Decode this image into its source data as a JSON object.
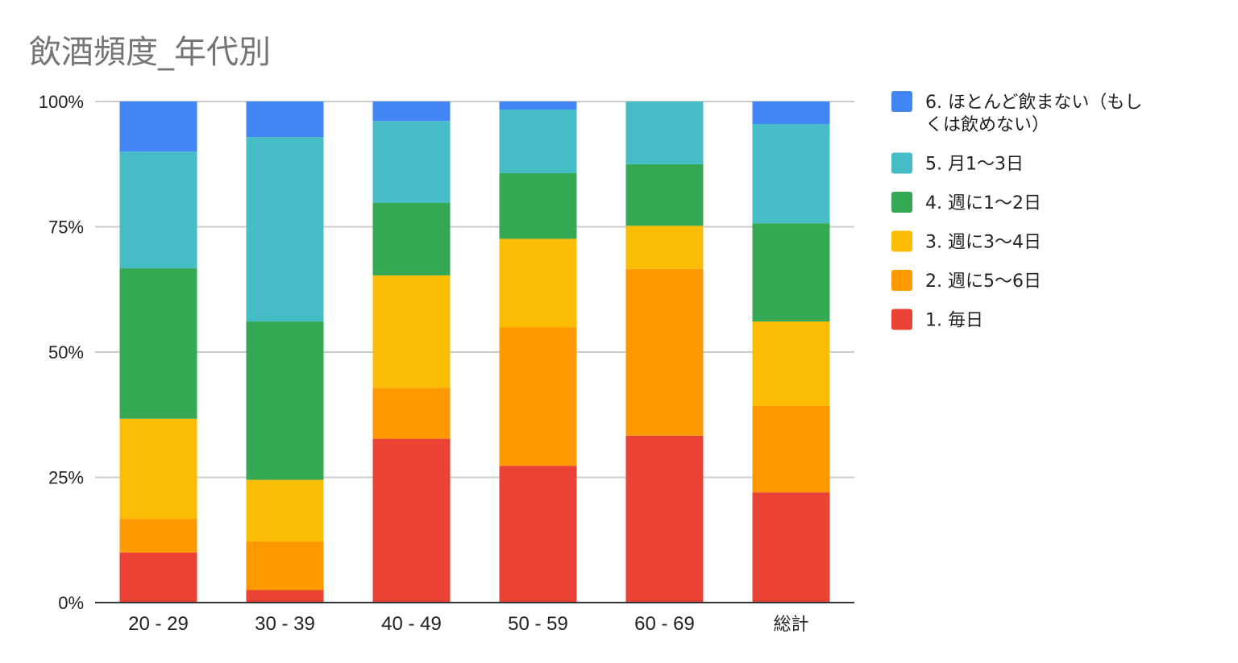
{
  "chart_data": {
    "type": "bar",
    "stacked": "percent",
    "title": "飲酒頻度_年代別",
    "categories": [
      "20 - 29",
      "30 - 39",
      "40 - 49",
      "50 - 59",
      "60 - 69",
      "総計"
    ],
    "ylim": [
      0,
      100
    ],
    "y_ticks": [
      "0%",
      "25%",
      "50%",
      "75%",
      "100%"
    ],
    "grid": true,
    "legend_position": "right",
    "series": [
      {
        "name": "1. 毎日",
        "color": "#EA4335",
        "values": [
          10.0,
          2.5,
          32.7,
          27.3,
          33.3,
          22.0
        ]
      },
      {
        "name": "2. 週に5～6日",
        "color": "#FF9900",
        "values": [
          6.7,
          9.7,
          10.2,
          27.6,
          33.3,
          17.3
        ]
      },
      {
        "name": "3. 週に3～4日",
        "color": "#FBBC04",
        "values": [
          20.0,
          12.3,
          22.4,
          17.7,
          8.6,
          16.8
        ]
      },
      {
        "name": "4. 週に1～2日",
        "color": "#34A853",
        "values": [
          30.0,
          31.6,
          14.5,
          13.1,
          12.3,
          19.6
        ]
      },
      {
        "name": "5. 月1～3日",
        "color": "#46BDC6",
        "values": [
          23.3,
          36.8,
          16.3,
          12.7,
          12.5,
          19.8
        ]
      },
      {
        "name": "6. ほとんど飲まない（もしくは飲めない）",
        "legend_lines": [
          "6. ほとんど飲まない（もし",
          "くは飲めない）"
        ],
        "color": "#4285F4",
        "values": [
          10.0,
          7.1,
          3.9,
          1.6,
          0.0,
          4.5
        ]
      }
    ]
  }
}
